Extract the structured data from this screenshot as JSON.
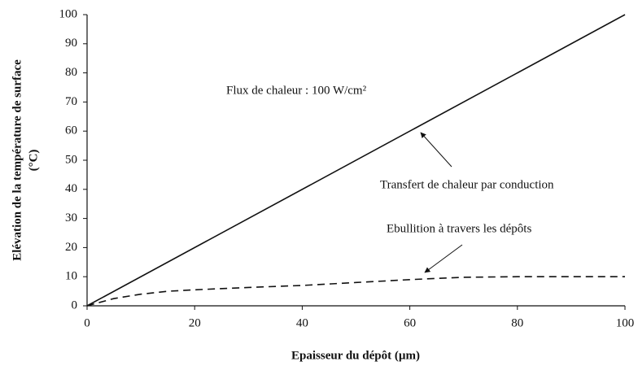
{
  "chart_data": {
    "type": "line",
    "xlabel": "Epaisseur du dépôt (µm)",
    "ylabel": [
      "Elévation de la température de surface",
      "(°C)"
    ],
    "annotations": [
      "Flux de chaleur : 100 W/cm²"
    ],
    "xlim": [
      0,
      100
    ],
    "xticks": [
      0,
      20,
      40,
      60,
      80,
      100
    ],
    "ylim": [
      0,
      100
    ],
    "yticks": [
      0,
      10,
      20,
      30,
      40,
      50,
      60,
      70,
      80,
      90,
      100
    ],
    "series": [
      {
        "name": "Transfert de chaleur par conduction",
        "color": "#111111",
        "dash": false,
        "x": [
          0,
          100
        ],
        "values": [
          0,
          100
        ]
      },
      {
        "name": "Ebullition à travers les dépôts",
        "color": "#111111",
        "dash": true,
        "x": [
          0,
          5,
          10,
          15,
          20,
          30,
          40,
          50,
          60,
          70,
          80,
          90,
          100
        ],
        "values": [
          0,
          2.5,
          4,
          5,
          5.5,
          6.3,
          7,
          8,
          9,
          9.8,
          10,
          10,
          10
        ]
      }
    ]
  }
}
